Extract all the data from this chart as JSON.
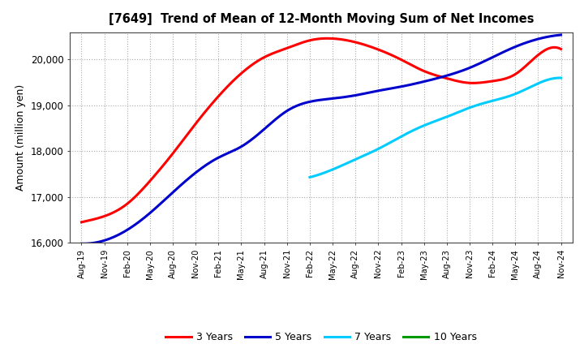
{
  "title": "[7649]  Trend of Mean of 12-Month Moving Sum of Net Incomes",
  "ylabel": "Amount (million yen)",
  "ylim": [
    16000,
    20600
  ],
  "yticks": [
    16000,
    17000,
    18000,
    19000,
    20000
  ],
  "legend_labels": [
    "3 Years",
    "5 Years",
    "7 Years",
    "10 Years"
  ],
  "legend_colors": [
    "#ff0000",
    "#0000cc",
    "#00ccff",
    "#009900"
  ],
  "x_labels": [
    "Aug-19",
    "Nov-19",
    "Feb-20",
    "May-20",
    "Aug-20",
    "Nov-20",
    "Feb-21",
    "May-21",
    "Aug-21",
    "Nov-21",
    "Feb-22",
    "May-22",
    "Aug-22",
    "Nov-22",
    "Feb-23",
    "May-23",
    "Aug-23",
    "Nov-23",
    "Feb-24",
    "May-24",
    "Aug-24",
    "Nov-24"
  ],
  "series_3y_x": [
    0,
    1,
    2,
    3,
    4,
    5,
    6,
    7,
    8,
    9,
    10,
    11,
    12,
    13,
    14,
    15,
    16,
    17,
    18,
    19,
    20,
    21
  ],
  "series_3y_y": [
    16450,
    16580,
    16850,
    17350,
    17950,
    18600,
    19200,
    19700,
    20050,
    20250,
    20420,
    20460,
    20380,
    20220,
    20000,
    19750,
    19590,
    19490,
    19530,
    19680,
    20100,
    20230
  ],
  "series_5y_x": [
    0,
    1,
    2,
    3,
    4,
    5,
    6,
    7,
    8,
    9,
    10,
    11,
    12,
    13,
    14,
    15,
    16,
    17,
    18,
    19,
    20,
    21
  ],
  "series_5y_y": [
    15980,
    16050,
    16280,
    16650,
    17100,
    17530,
    17860,
    18100,
    18480,
    18880,
    19080,
    19150,
    19220,
    19320,
    19410,
    19520,
    19650,
    19820,
    20050,
    20280,
    20450,
    20540
  ],
  "series_7y_x": [
    10,
    11,
    12,
    13,
    14,
    15,
    16,
    17,
    18,
    19,
    20,
    21
  ],
  "series_7y_y": [
    17430,
    17600,
    17820,
    18050,
    18320,
    18560,
    18750,
    18950,
    19100,
    19250,
    19480,
    19600
  ],
  "series_10y_x": [],
  "series_10y_y": []
}
